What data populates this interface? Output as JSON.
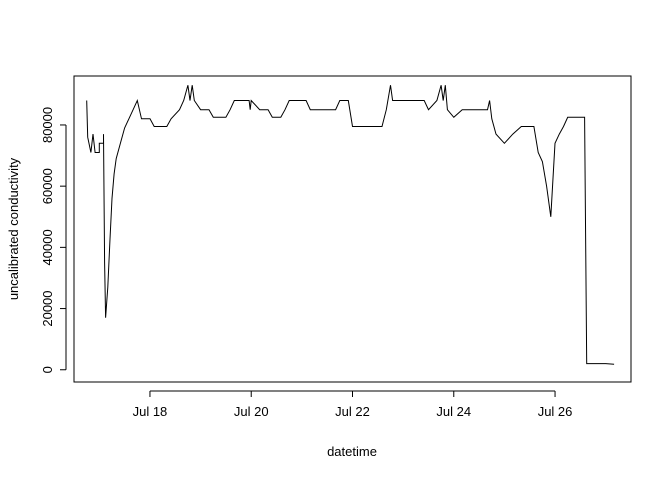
{
  "chart_data": {
    "type": "line",
    "xlabel": "datetime",
    "ylabel": "uncalibrated conductivity",
    "x_ticks": [
      {
        "value": "2023-07-18",
        "label": "Jul 18"
      },
      {
        "value": "2023-07-20",
        "label": "Jul 20"
      },
      {
        "value": "2023-07-22",
        "label": "Jul 22"
      },
      {
        "value": "2023-07-24",
        "label": "Jul 24"
      },
      {
        "value": "2023-07-26",
        "label": "Jul 26"
      }
    ],
    "y_ticks": [
      0,
      20000,
      40000,
      60000,
      80000
    ],
    "xlim": [
      "2023-07-16 12:00",
      "2023-07-27 12:00"
    ],
    "ylim": [
      -4000,
      96000
    ],
    "grid": false,
    "series": [
      {
        "color": "#000000",
        "points": [
          [
            "2023-07-16 18:00",
            88000
          ],
          [
            "2023-07-16 18:30",
            76000
          ],
          [
            "2023-07-16 20:00",
            71000
          ],
          [
            "2023-07-16 21:00",
            77000
          ],
          [
            "2023-07-16 22:00",
            71000
          ],
          [
            "2023-07-17 00:00",
            71000
          ],
          [
            "2023-07-17 00:00",
            74000
          ],
          [
            "2023-07-17 02:00",
            74000
          ],
          [
            "2023-07-17 02:00",
            77000
          ],
          [
            "2023-07-17 02:30",
            35000
          ],
          [
            "2023-07-17 03:00",
            17000
          ],
          [
            "2023-07-17 04:00",
            27000
          ],
          [
            "2023-07-17 05:00",
            42000
          ],
          [
            "2023-07-17 06:00",
            56000
          ],
          [
            "2023-07-17 07:00",
            64000
          ],
          [
            "2023-07-17 08:00",
            69000
          ],
          [
            "2023-07-17 10:00",
            74000
          ],
          [
            "2023-07-17 12:00",
            79000
          ],
          [
            "2023-07-17 14:00",
            82000
          ],
          [
            "2023-07-17 16:00",
            85000
          ],
          [
            "2023-07-17 18:00",
            88000
          ],
          [
            "2023-07-17 20:00",
            82000
          ],
          [
            "2023-07-18 00:00",
            82000
          ],
          [
            "2023-07-18 02:00",
            79500
          ],
          [
            "2023-07-18 08:00",
            79500
          ],
          [
            "2023-07-18 10:00",
            82000
          ],
          [
            "2023-07-18 14:00",
            85000
          ],
          [
            "2023-07-18 16:00",
            88000
          ],
          [
            "2023-07-18 18:00",
            93000
          ],
          [
            "2023-07-18 19:00",
            88000
          ],
          [
            "2023-07-18 20:00",
            93000
          ],
          [
            "2023-07-18 21:00",
            88000
          ],
          [
            "2023-07-19 00:00",
            85000
          ],
          [
            "2023-07-19 04:00",
            85000
          ],
          [
            "2023-07-19 06:00",
            82500
          ],
          [
            "2023-07-19 12:00",
            82500
          ],
          [
            "2023-07-19 14:00",
            85000
          ],
          [
            "2023-07-19 16:00",
            88000
          ],
          [
            "2023-07-19 23:00",
            88000
          ],
          [
            "2023-07-19 23:30",
            85000
          ],
          [
            "2023-07-20 00:00",
            88000
          ],
          [
            "2023-07-20 04:00",
            85000
          ],
          [
            "2023-07-20 08:00",
            85000
          ],
          [
            "2023-07-20 10:00",
            82500
          ],
          [
            "2023-07-20 14:00",
            82500
          ],
          [
            "2023-07-20 16:00",
            85000
          ],
          [
            "2023-07-20 18:00",
            88000
          ],
          [
            "2023-07-21 02:00",
            88000
          ],
          [
            "2023-07-21 04:00",
            85000
          ],
          [
            "2023-07-21 16:00",
            85000
          ],
          [
            "2023-07-21 18:00",
            88000
          ],
          [
            "2023-07-21 22:00",
            88000
          ],
          [
            "2023-07-22 00:00",
            79500
          ],
          [
            "2023-07-22 14:00",
            79500
          ],
          [
            "2023-07-22 16:00",
            85000
          ],
          [
            "2023-07-22 18:00",
            93000
          ],
          [
            "2023-07-22 19:00",
            88000
          ],
          [
            "2023-07-23 10:00",
            88000
          ],
          [
            "2023-07-23 12:00",
            85000
          ],
          [
            "2023-07-23 16:00",
            88000
          ],
          [
            "2023-07-23 18:00",
            93000
          ],
          [
            "2023-07-23 19:00",
            88000
          ],
          [
            "2023-07-23 20:00",
            93000
          ],
          [
            "2023-07-23 21:00",
            85000
          ],
          [
            "2023-07-24 00:00",
            82500
          ],
          [
            "2023-07-24 04:00",
            85000
          ],
          [
            "2023-07-24 16:00",
            85000
          ],
          [
            "2023-07-24 17:00",
            88000
          ],
          [
            "2023-07-24 18:00",
            82000
          ],
          [
            "2023-07-24 20:00",
            77000
          ],
          [
            "2023-07-25 00:00",
            74000
          ],
          [
            "2023-07-25 04:00",
            77000
          ],
          [
            "2023-07-25 08:00",
            79500
          ],
          [
            "2023-07-25 14:00",
            79500
          ],
          [
            "2023-07-25 16:00",
            71000
          ],
          [
            "2023-07-25 18:00",
            68000
          ],
          [
            "2023-07-25 20:00",
            60000
          ],
          [
            "2023-07-25 22:00",
            50000
          ],
          [
            "2023-07-26 00:00",
            74000
          ],
          [
            "2023-07-26 02:00",
            77000
          ],
          [
            "2023-07-26 04:00",
            79500
          ],
          [
            "2023-07-26 06:00",
            82500
          ],
          [
            "2023-07-26 14:00",
            82500
          ],
          [
            "2023-07-26 15:00",
            2000
          ],
          [
            "2023-07-27 00:00",
            2000
          ],
          [
            "2023-07-27 04:00",
            1800
          ]
        ]
      }
    ]
  }
}
